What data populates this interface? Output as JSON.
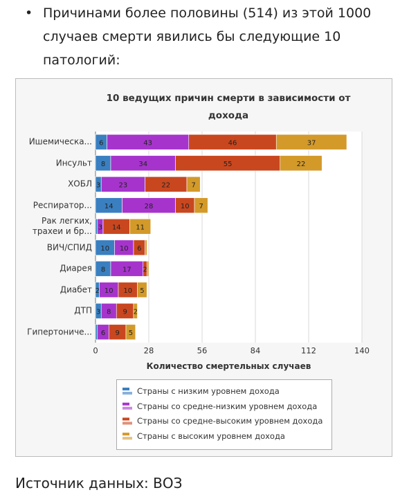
{
  "bullet_text": "Причинами более половины (514) из этой 1000 случаев смерти явились бы следующие 10 патологий:",
  "chart_data": {
    "type": "stacked-bar-horizontal",
    "title": "10 ведущих причин смерти в зависимости от дохода",
    "x_label": "Количество смертельных случаев",
    "categories": [
      "Ишемическа...",
      "Инсульт",
      "ХОБЛ",
      "Респиратор...",
      "Рак легких, трахеи и бр...",
      "ВИЧ/СПИД",
      "Диарея",
      "Диабет",
      "ДТП",
      "Гипертониче..."
    ],
    "series": [
      {
        "name": "Страны с низким уровнем дохода",
        "color": "#3a7fc0",
        "values": [
          6,
          8,
          3,
          14,
          1,
          10,
          8,
          2,
          3,
          1
        ]
      },
      {
        "name": "Страны со средне-низким уровнем дохода",
        "color": "#a634cc",
        "values": [
          43,
          34,
          23,
          28,
          3,
          10,
          17,
          10,
          8,
          6
        ]
      },
      {
        "name": "Страны со средне-высоким уровнем дохода",
        "color": "#c9471f",
        "values": [
          46,
          55,
          22,
          10,
          14,
          6,
          2,
          10,
          9,
          9
        ]
      },
      {
        "name": "Страны с высоким уровнем дохода",
        "color": "#d39a2a",
        "values": [
          37,
          22,
          7,
          7,
          11,
          1,
          1,
          5,
          2,
          5
        ]
      }
    ],
    "xlim": [
      0,
      140
    ],
    "xticks": [
      0,
      28,
      56,
      84,
      112,
      140
    ],
    "grid": true
  },
  "source_text": "Источник данных: ВОЗ"
}
